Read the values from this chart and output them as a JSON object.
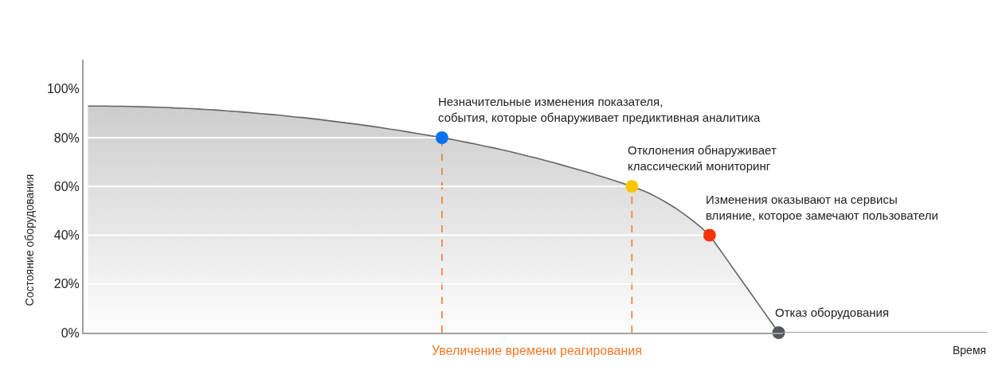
{
  "chart_data": {
    "type": "area",
    "ylabel": "Состояние оборудования",
    "categories": [
      null,
      null,
      null,
      null,
      null,
      null,
      null,
      null,
      null,
      null,
      null,
      null,
      null,
      null,
      null,
      null,
      null,
      null,
      null,
      null,
      null,
      null,
      null,
      null,
      null,
      null,
      null,
      null,
      null,
      null,
      null,
      null,
      null,
      null,
      null,
      null,
      null,
      null,
      null,
      null,
      null,
      null,
      null,
      null,
      null,
      null,
      null,
      null,
      null,
      null,
      null,
      null,
      null,
      null,
      null,
      null,
      null,
      null,
      null,
      null,
      null,
      null,
      null,
      null,
      null,
      null,
      null,
      null,
      null,
      null,
      null,
      null,
      null,
      null,
      null,
      null,
      null,
      null,
      null,
      null,
      null
    ],
    "ylim": [
      0,
      112
    ],
    "yticks": [
      {
        "value": 0,
        "label": "0%"
      },
      {
        "value": 20,
        "label": "20%"
      },
      {
        "value": 40,
        "label": "40%"
      },
      {
        "value": 60,
        "label": "60%"
      },
      {
        "value": 80,
        "label": "80%"
      },
      {
        "value": 100,
        "label": "100%"
      }
    ],
    "grid": "y",
    "tick_labels": "y",
    "series": [
      {
        "color": "#646464",
        "values": [
          93.0,
          93.0,
          93.0,
          92.9,
          92.9,
          92.8,
          92.7,
          92.6,
          92.5,
          92.4,
          92.2,
          92.1,
          91.9,
          91.7,
          91.5,
          91.3,
          91.0,
          90.8,
          90.5,
          90.2,
          89.9,
          89.6,
          89.3,
          88.9,
          88.5,
          88.2,
          87.8,
          87.4,
          86.9,
          86.5,
          86.0,
          85.6,
          85.1,
          84.6,
          84.1,
          83.5,
          83.0,
          82.4,
          81.8,
          81.2,
          80.6,
          80,
          79.4,
          78.7,
          78.0,
          77.3,
          76.5,
          75.8,
          75.0,
          74.2,
          73.3,
          72.4,
          71.6,
          70.6,
          69.7,
          68.7,
          67.7,
          66.7,
          65.7,
          64.6,
          63.5,
          62.4,
          61.2,
          60,
          58.7,
          57.2,
          55.4,
          53.4,
          51.2,
          48.8,
          46.1,
          43.2,
          40,
          35,
          30,
          25,
          20,
          15,
          10,
          5,
          0
        ]
      },
      {
        "type": "lollipop",
        "color": "#f5792a",
        "line_style": "dashed",
        "marker": "circle",
        "values": [
          null,
          null,
          null,
          null,
          null,
          null,
          null,
          null,
          null,
          null,
          null,
          null,
          null,
          null,
          null,
          null,
          null,
          null,
          null,
          null,
          null,
          null,
          null,
          null,
          null,
          null,
          null,
          null,
          null,
          null,
          null,
          null,
          null,
          null,
          null,
          null,
          null,
          null,
          null,
          null,
          null,
          80,
          null,
          null,
          null,
          null,
          null,
          null,
          null,
          null,
          null,
          null,
          null,
          null,
          null,
          null,
          null,
          null,
          null,
          null,
          null,
          null,
          null,
          60,
          null,
          null,
          null,
          null,
          null,
          null,
          null,
          null,
          null,
          null,
          null,
          null,
          null,
          null,
          null,
          null,
          null
        ],
        "colors": [
          null,
          null,
          null,
          null,
          null,
          null,
          null,
          null,
          null,
          null,
          null,
          null,
          null,
          null,
          null,
          null,
          null,
          null,
          null,
          null,
          null,
          null,
          null,
          null,
          null,
          null,
          null,
          null,
          null,
          null,
          null,
          null,
          null,
          null,
          null,
          null,
          null,
          null,
          null,
          null,
          null,
          "#0a72f0",
          null,
          null,
          null,
          null,
          null,
          null,
          null,
          null,
          null,
          null,
          null,
          null,
          null,
          null,
          null,
          null,
          null,
          null,
          null,
          null,
          null,
          "#f7c600",
          null,
          null,
          null,
          null,
          null,
          null,
          null,
          null,
          null,
          null,
          null,
          null,
          null,
          null,
          null,
          null,
          null
        ]
      },
      {
        "type": "scatter",
        "marker": "circle",
        "values": [
          null,
          null,
          null,
          null,
          null,
          null,
          null,
          null,
          null,
          null,
          null,
          null,
          null,
          null,
          null,
          null,
          null,
          null,
          null,
          null,
          null,
          null,
          null,
          null,
          null,
          null,
          null,
          null,
          null,
          null,
          null,
          null,
          null,
          null,
          null,
          null,
          null,
          null,
          null,
          null,
          null,
          null,
          null,
          null,
          null,
          null,
          null,
          null,
          null,
          null,
          null,
          null,
          null,
          null,
          null,
          null,
          null,
          null,
          null,
          null,
          null,
          null,
          null,
          null,
          null,
          null,
          null,
          null,
          null,
          null,
          null,
          null,
          40,
          null,
          null,
          null,
          null,
          null,
          null,
          null,
          0
        ],
        "colors": [
          null,
          null,
          null,
          null,
          null,
          null,
          null,
          null,
          null,
          null,
          null,
          null,
          null,
          null,
          null,
          null,
          null,
          null,
          null,
          null,
          null,
          null,
          null,
          null,
          null,
          null,
          null,
          null,
          null,
          null,
          null,
          null,
          null,
          null,
          null,
          null,
          null,
          null,
          null,
          null,
          null,
          null,
          null,
          null,
          null,
          null,
          null,
          null,
          null,
          null,
          null,
          null,
          null,
          null,
          null,
          null,
          null,
          null,
          null,
          null,
          null,
          null,
          null,
          null,
          null,
          null,
          null,
          null,
          null,
          null,
          null,
          null,
          "#f5330c",
          null,
          null,
          null,
          null,
          null,
          null,
          null,
          "#54585e"
        ]
      }
    ],
    "annotations": [
      "Увеличение времени реагирования",
      "Незначительные изменения показателя,\nсобытия, которые обнаруживает предиктивная аналитика",
      "Отклонения обнаруживает\nклассический мониторинг",
      "Изменения оказывают на сервисы\nвлияние, которое замечают пользователи",
      "Отказ оборудования",
      "Время"
    ]
  }
}
